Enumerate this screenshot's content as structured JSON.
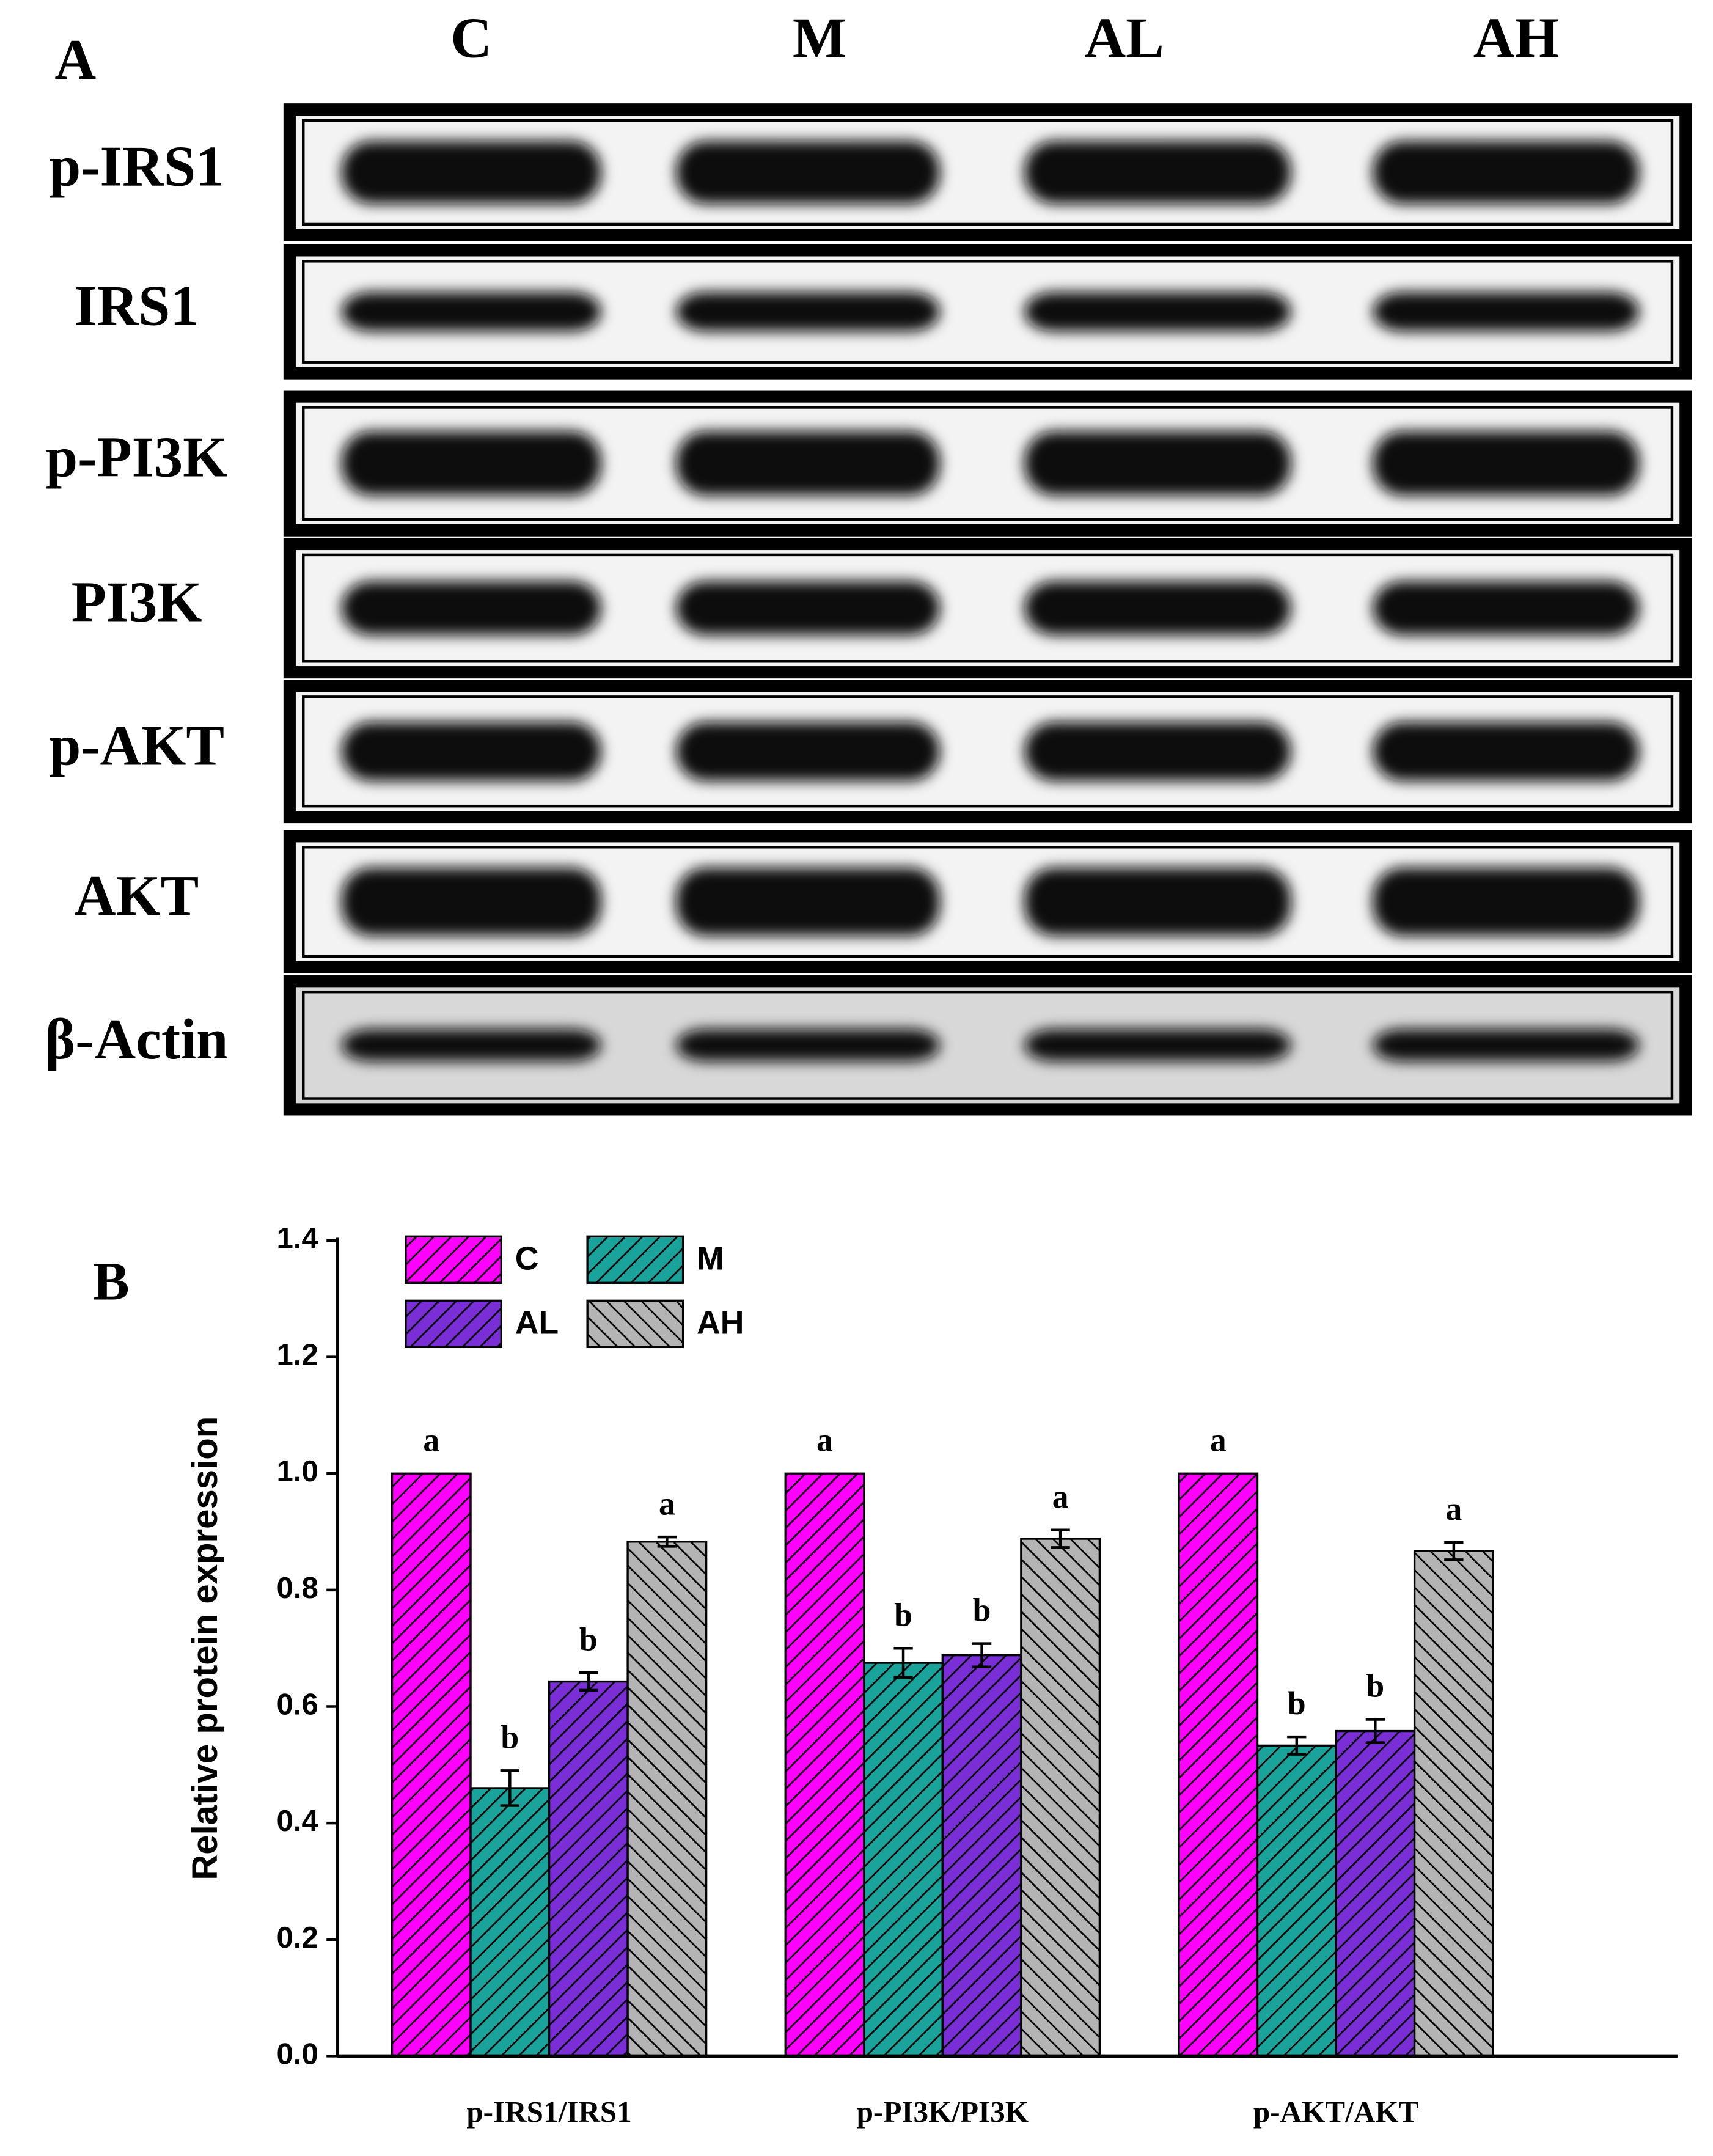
{
  "blot": {
    "panel_label": "A",
    "lanes": [
      "C",
      "M",
      "AL",
      "AH"
    ],
    "rows": [
      "p-IRS1",
      "IRS1",
      "p-PI3K",
      "PI3K",
      "p-AKT",
      "AKT",
      "β-Actin"
    ]
  },
  "chart_data": {
    "type": "bar",
    "panel_label": "B",
    "ylabel": "Relative protein expression",
    "categories": [
      "p-IRS1/IRS1",
      "p-PI3K/PI3K",
      "p-AKT/AKT"
    ],
    "series": [
      {
        "name": "C",
        "color": "#ff00ff",
        "hatch": "/",
        "values": [
          1.0,
          1.0,
          1.0
        ],
        "errors": [
          0,
          0,
          0
        ],
        "annotations": [
          "a",
          "a",
          "a"
        ]
      },
      {
        "name": "M",
        "color": "#1aa39a",
        "hatch": "/",
        "values": [
          0.46,
          0.675,
          0.533
        ],
        "errors": [
          0.03,
          0.025,
          0.015
        ],
        "annotations": [
          "b",
          "b",
          "b"
        ]
      },
      {
        "name": "AL",
        "color": "#7a2fd6",
        "hatch": "/",
        "values": [
          0.643,
          0.688,
          0.558
        ],
        "errors": [
          0.015,
          0.02,
          0.02
        ],
        "annotations": [
          "b",
          "b",
          "b"
        ]
      },
      {
        "name": "AH",
        "color": "#b4b4b4",
        "hatch": "\\",
        "values": [
          0.883,
          0.888,
          0.867
        ],
        "errors": [
          0.008,
          0.015,
          0.015
        ],
        "annotations": [
          "a",
          "a",
          "a"
        ]
      }
    ],
    "ylim": [
      0,
      1.4
    ],
    "yticks": [
      {
        "value": 0,
        "label": "0.0"
      },
      {
        "value": 0.2,
        "label": "0.2"
      },
      {
        "value": 0.4,
        "label": "0.4"
      },
      {
        "value": 0.6,
        "label": "0.6"
      },
      {
        "value": 0.8,
        "label": "0.8"
      },
      {
        "value": 1.0,
        "label": "1.0"
      },
      {
        "value": 1.2,
        "label": "1.2"
      },
      {
        "value": 1.4,
        "label": "1.4"
      }
    ],
    "legend": "upper left"
  }
}
